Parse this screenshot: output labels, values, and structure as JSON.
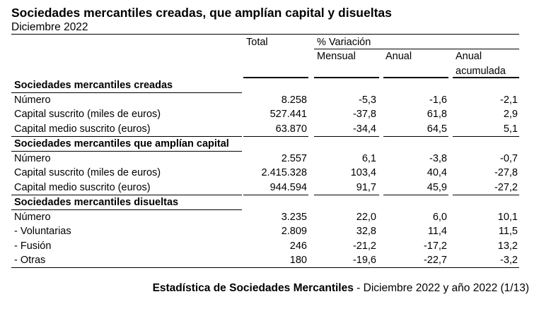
{
  "title": "Sociedades mercantiles creadas, que amplían capital y disueltas",
  "subtitle": "Diciembre 2022",
  "headers": {
    "total": "Total",
    "variacion": "% Variación",
    "mensual": "Mensual",
    "anual": "Anual",
    "anual_acumulada_1": "Anual",
    "anual_acumulada_2": "acumulada"
  },
  "sections": [
    {
      "label": "Sociedades mercantiles creadas",
      "rows": [
        {
          "label": "Número",
          "total": "8.258",
          "mensual": "-5,3",
          "anual": "-1,6",
          "acumulada": "-2,1"
        },
        {
          "label": "Capital suscrito (miles de euros)",
          "total": "527.441",
          "mensual": "-37,8",
          "anual": "61,8",
          "acumulada": "2,9"
        },
        {
          "label": "Capital medio suscrito (euros)",
          "total": "63.870",
          "mensual": "-34,4",
          "anual": "64,5",
          "acumulada": "5,1"
        }
      ]
    },
    {
      "label": "Sociedades mercantiles que amplían capital",
      "rows": [
        {
          "label": "Número",
          "total": "2.557",
          "mensual": "6,1",
          "anual": "-3,8",
          "acumulada": "-0,7"
        },
        {
          "label": "Capital suscrito (miles de euros)",
          "total": "2.415.328",
          "mensual": "103,4",
          "anual": "40,4",
          "acumulada": "-27,8"
        },
        {
          "label": "Capital medio suscrito (euros)",
          "total": "944.594",
          "mensual": "91,7",
          "anual": "45,9",
          "acumulada": "-27,2"
        }
      ]
    },
    {
      "label": "Sociedades mercantiles disueltas",
      "rows": [
        {
          "label": "Número",
          "total": "3.235",
          "mensual": "22,0",
          "anual": "6,0",
          "acumulada": "10,1"
        },
        {
          "label": "- Voluntarias",
          "total": "2.809",
          "mensual": "32,8",
          "anual": "11,4",
          "acumulada": "11,5"
        },
        {
          "label": "- Fusión",
          "total": "246",
          "mensual": "-21,2",
          "anual": "-17,2",
          "acumulada": "13,2"
        },
        {
          "label": "- Otras",
          "total": "180",
          "mensual": "-19,6",
          "anual": "-22,7",
          "acumulada": "-3,2"
        }
      ]
    }
  ],
  "footer": {
    "bold": "Estadística de Sociedades Mercantiles",
    "rest": " - Diciembre 2022 y año 2022 (1/13)"
  }
}
